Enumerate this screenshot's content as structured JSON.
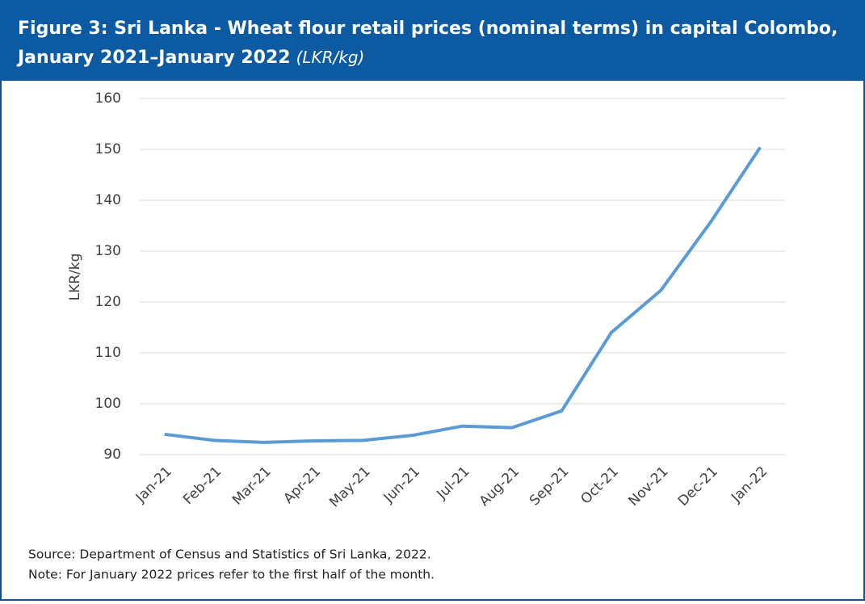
{
  "chart_data": {
    "type": "line",
    "title": "Figure 3: Sri Lanka - Wheat flour retail prices (nominal terms) in capital Colombo,",
    "title_line2": "January 2021–January 2022",
    "units": "(LKR/kg)",
    "y_label": "LKR/kg",
    "categories": [
      "Jan-21",
      "Feb-21",
      "Mar-21",
      "Apr-21",
      "May-21",
      "Jun-21",
      "Jul-21",
      "Aug-21",
      "Sep-21",
      "Oct-21",
      "Nov-21",
      "Dec-21",
      "Jan-22"
    ],
    "series": [
      {
        "name": "Wheat flour",
        "color": "#5b9bd5",
        "values": [
          94,
          92.8,
          92.4,
          92.7,
          92.8,
          93.8,
          95.6,
          95.3,
          98.6,
          114,
          122.3,
          135.7,
          150.4
        ]
      }
    ],
    "ylim": [
      90,
      160
    ],
    "yticks": [
      90,
      100,
      110,
      120,
      130,
      140,
      150,
      160
    ],
    "grid": true,
    "source": "Source: Department of Census and Statistics of Sri Lanka, 2022.",
    "note": "Note: For January 2022 prices refer to the first half of the month."
  }
}
